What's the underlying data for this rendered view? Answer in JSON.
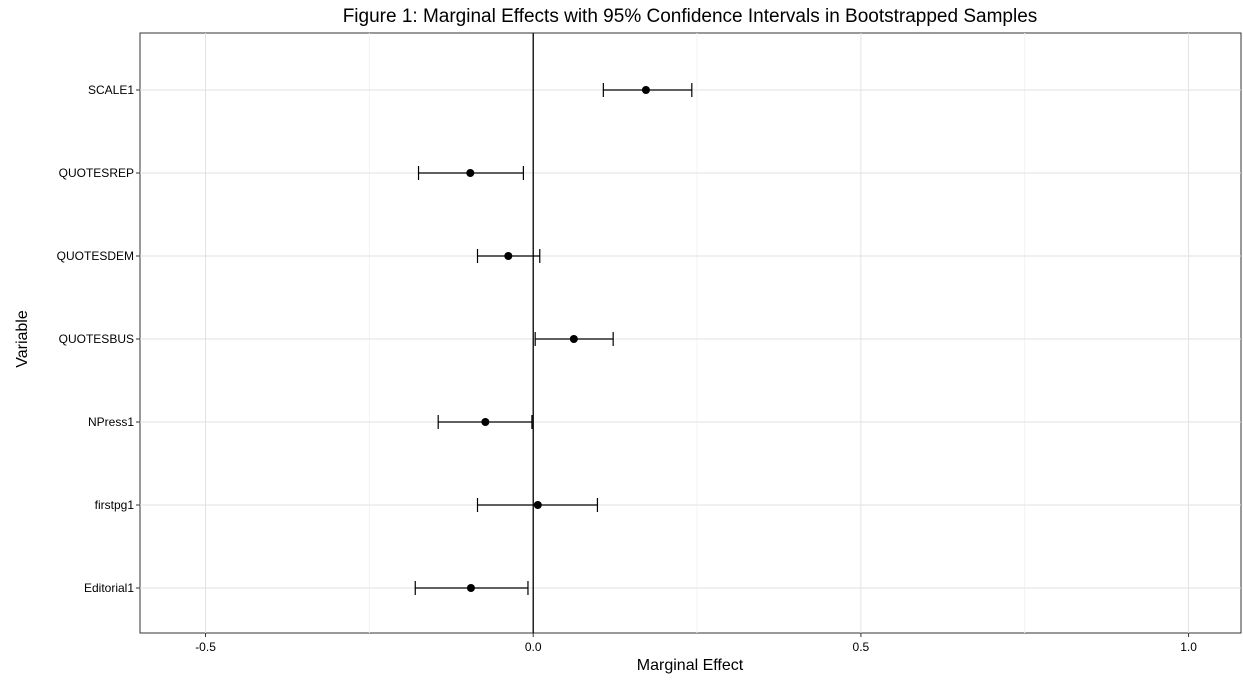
{
  "chart_data": {
    "type": "errorbar",
    "title": "Figure 1: Marginal Effects with 95% Confidence Intervals in Bootstrapped Samples",
    "xlabel": "Marginal Effect",
    "ylabel": "Variable",
    "xlim": [
      -0.6,
      1.08
    ],
    "xticks": [
      -0.5,
      0.0,
      0.5,
      1.0
    ],
    "xtick_labels": [
      "-0.5",
      "0.0",
      "0.5",
      "1.0"
    ],
    "zero_line": 0.0,
    "grid": true,
    "categories": [
      "SCALE1",
      "QUOTESREP",
      "QUOTESDEM",
      "QUOTESBUS",
      "NPress1",
      "firstpg1",
      "Editorial1"
    ],
    "estimates": [
      0.172,
      -0.096,
      -0.038,
      0.062,
      -0.073,
      0.007,
      -0.095
    ],
    "lower": [
      0.107,
      -0.175,
      -0.085,
      0.003,
      -0.145,
      -0.085,
      -0.18
    ],
    "upper": [
      0.242,
      -0.015,
      0.01,
      0.122,
      -0.002,
      0.098,
      -0.008
    ]
  }
}
